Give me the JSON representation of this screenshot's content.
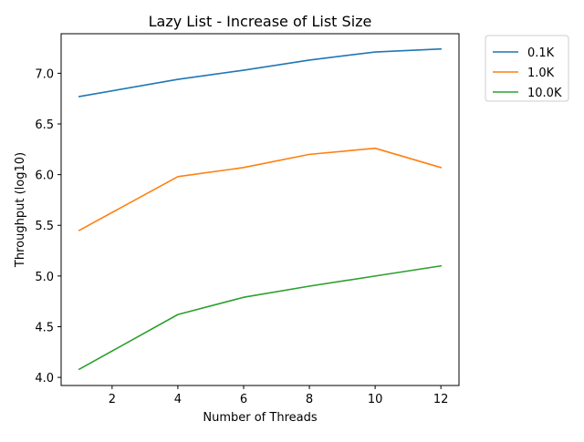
{
  "chart_data": {
    "type": "line",
    "title": "Lazy List - Increase of List Size",
    "xlabel": "Number of Threads",
    "ylabel": "Throughput (log10)",
    "x": [
      1,
      4,
      6,
      8,
      10,
      12
    ],
    "xticks": [
      2,
      4,
      6,
      8,
      10,
      12
    ],
    "yticks": [
      4.0,
      4.5,
      5.0,
      5.5,
      6.0,
      6.5,
      7.0
    ],
    "xlim": [
      0.45,
      12.55
    ],
    "ylim": [
      3.92,
      7.39
    ],
    "grid": false,
    "legend_position": "outside-top-right",
    "series": [
      {
        "name": "0.1K",
        "color": "#1f77b4",
        "values": [
          6.77,
          6.94,
          7.03,
          7.13,
          7.21,
          7.24
        ]
      },
      {
        "name": "1.0K",
        "color": "#ff7f0e",
        "values": [
          5.45,
          5.98,
          6.07,
          6.2,
          6.26,
          6.07
        ]
      },
      {
        "name": "10.0K",
        "color": "#2ca02c",
        "values": [
          4.08,
          4.62,
          4.79,
          4.9,
          5.0,
          5.1
        ]
      }
    ]
  }
}
